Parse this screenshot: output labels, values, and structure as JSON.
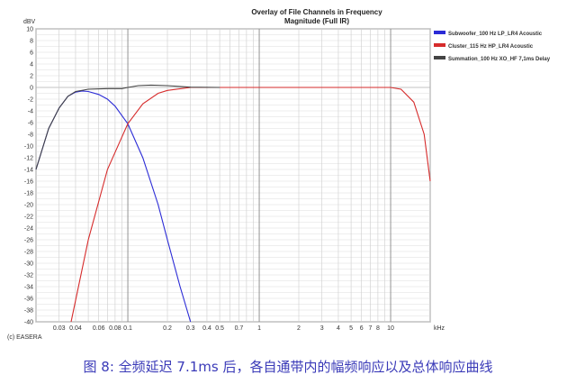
{
  "chart_data": {
    "type": "line",
    "title": "Overlay of File Channels in Frequency",
    "subtitle": "Magnitude (Full IR)",
    "ylabel": "dBV",
    "xlabel": "kHz",
    "xscale": "log",
    "xlim": [
      0.02,
      20
    ],
    "ylim": [
      -40,
      10
    ],
    "grid": true,
    "legend": "right",
    "yticks": [
      10,
      8,
      6,
      4,
      2,
      0,
      -2,
      -4,
      -6,
      -8,
      -10,
      -12,
      -14,
      -16,
      -18,
      -20,
      -22,
      -24,
      -26,
      -28,
      -30,
      -32,
      -34,
      -36,
      -38,
      -40
    ],
    "xticks": [
      0.03,
      0.04,
      0.06,
      0.08,
      0.1,
      0.2,
      0.3,
      0.4,
      0.5,
      0.7,
      1,
      2,
      3,
      4,
      5,
      6,
      7,
      8,
      10
    ],
    "xtick_labels": [
      "0.03",
      "0.04",
      "0.06",
      "0.08",
      "0.1",
      "0.2",
      "0.3",
      "0.4",
      "0.5",
      "0.7",
      "1",
      "2",
      "3",
      "4",
      "5",
      "6",
      "7",
      "8",
      "10"
    ],
    "series": [
      {
        "name": "Subwoofer_100 Hz LP_LR4 Acoustic",
        "color": "#2b2bd6",
        "x": [
          0.02,
          0.025,
          0.03,
          0.035,
          0.04,
          0.045,
          0.05,
          0.06,
          0.07,
          0.08,
          0.1,
          0.13,
          0.17,
          0.2,
          0.25,
          0.3
        ],
        "y": [
          -14,
          -7,
          -3.5,
          -1.5,
          -0.8,
          -0.6,
          -0.7,
          -1.2,
          -2,
          -3.2,
          -6.2,
          -12,
          -20,
          -26,
          -34,
          -40
        ]
      },
      {
        "name": "Cluster_115 Hz HP_LR4 Acoustic",
        "color": "#d62b2b",
        "x": [
          0.037,
          0.05,
          0.07,
          0.1,
          0.13,
          0.17,
          0.2,
          0.3,
          1,
          10,
          12,
          15,
          18,
          20
        ],
        "y": [
          -40,
          -26,
          -14,
          -6.2,
          -2.8,
          -1,
          -0.5,
          0,
          0,
          0,
          -0.3,
          -2.5,
          -8,
          -16
        ]
      },
      {
        "name": "Summation_100 Hz XO_HF 7,1ms Delay",
        "color": "#444444",
        "x": [
          0.02,
          0.022,
          0.025,
          0.03,
          0.035,
          0.04,
          0.05,
          0.07,
          0.09,
          0.1,
          0.12,
          0.15,
          0.2,
          0.3,
          0.5
        ],
        "y": [
          -14,
          -11,
          -7,
          -3.5,
          -1.5,
          -0.7,
          -0.3,
          -0.2,
          -0.2,
          0,
          0.3,
          0.4,
          0.3,
          0.05,
          0
        ]
      }
    ]
  },
  "copyright": "(c) EASERA",
  "caption": "图 8: 全频延迟 7.1ms 后，各自通带内的幅频响应以及总体响应曲线"
}
